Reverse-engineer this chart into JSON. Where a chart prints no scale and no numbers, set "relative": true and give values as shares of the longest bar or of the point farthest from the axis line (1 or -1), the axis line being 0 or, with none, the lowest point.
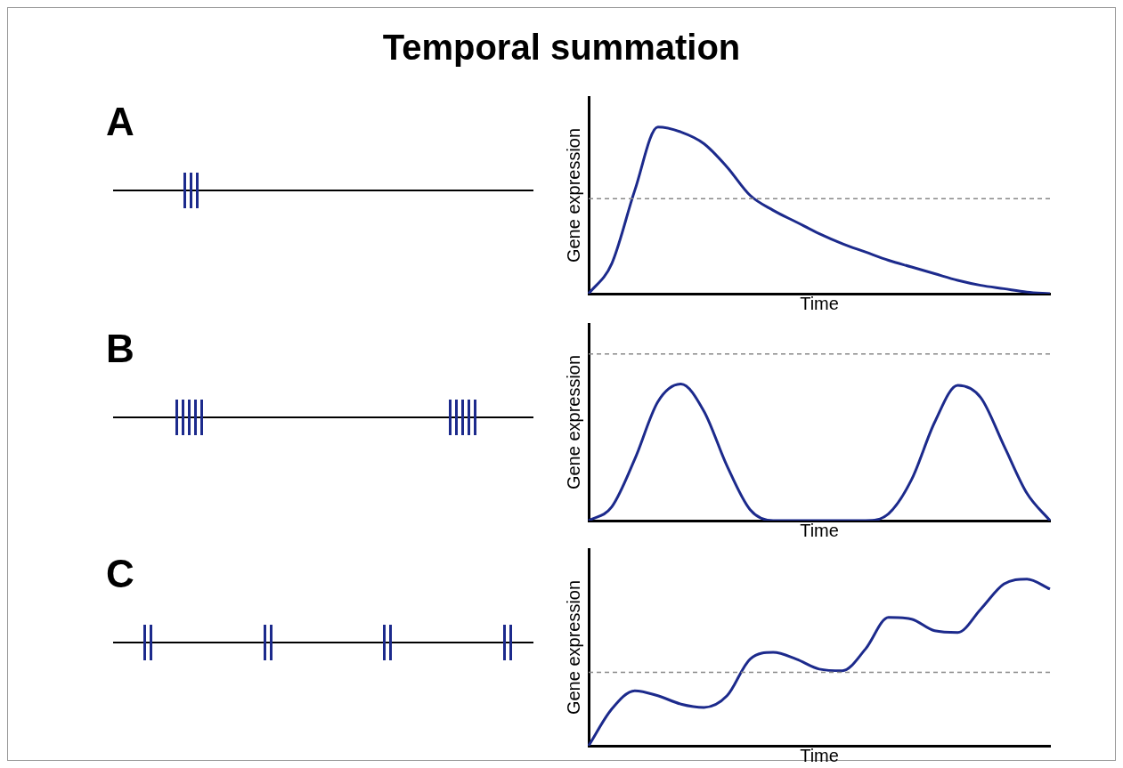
{
  "chart_data": [
    {
      "type": "line",
      "title": "Temporal summation",
      "annotations": [
        "A"
      ],
      "xlabel": "Time",
      "ylabel": "Gene expression",
      "relative": true,
      "tick_labels": false,
      "grid": false,
      "legend": false,
      "marker": "none",
      "categories": [
        null,
        null,
        null,
        null,
        null,
        null,
        null,
        null,
        null,
        null,
        null,
        null,
        null,
        null,
        null,
        null,
        null,
        null,
        null,
        null,
        null
      ],
      "series": [
        {
          "color": "#1c2a8c",
          "values": [
            0,
            0.18,
            0.62,
            1,
            0.97,
            0.9,
            0.76,
            0.59,
            0.5,
            0.43,
            0.36,
            0.3,
            0.25,
            0.2,
            0.16,
            0.12,
            0.08,
            0.05,
            0.03,
            0.01,
            0
          ]
        }
      ],
      "ref_lines": [
        {
          "axis": "y",
          "value": 0.57,
          "color": "#888888",
          "line_style": "dashed"
        }
      ]
    },
    {
      "type": "line",
      "annotations": [
        "B"
      ],
      "xlabel": "Time",
      "ylabel": "Gene expression",
      "relative": true,
      "tick_labels": false,
      "grid": false,
      "legend": false,
      "marker": "none",
      "categories": [
        null,
        null,
        null,
        null,
        null,
        null,
        null,
        null,
        null,
        null,
        null,
        null,
        null,
        null,
        null,
        null,
        null,
        null,
        null,
        null,
        null
      ],
      "series": [
        {
          "color": "#1c2a8c",
          "values": [
            0,
            0.1,
            0.45,
            0.87,
            1,
            0.8,
            0.4,
            0.08,
            0,
            0,
            0,
            0,
            0,
            0.05,
            0.3,
            0.72,
            0.99,
            0.9,
            0.55,
            0.2,
            0
          ]
        }
      ],
      "ref_lines": [
        {
          "axis": "y",
          "value": 1.22,
          "color": "#888888",
          "line_style": "dashed"
        }
      ]
    },
    {
      "type": "line",
      "annotations": [
        "C"
      ],
      "xlabel": "Time",
      "ylabel": "Gene expression",
      "relative": true,
      "tick_labels": false,
      "grid": false,
      "legend": false,
      "marker": "none",
      "categories": [
        null,
        null,
        null,
        null,
        null,
        null,
        null,
        null,
        null,
        null,
        null,
        null,
        null,
        null,
        null,
        null,
        null,
        null,
        null,
        null,
        null
      ],
      "series": [
        {
          "color": "#1c2a8c",
          "values": [
            0,
            0.22,
            0.33,
            0.3,
            0.25,
            0.23,
            0.3,
            0.52,
            0.56,
            0.52,
            0.46,
            0.45,
            0.58,
            0.77,
            0.76,
            0.69,
            0.68,
            0.82,
            0.97,
            1,
            0.94
          ]
        }
      ],
      "ref_lines": [
        {
          "axis": "y",
          "value": 0.44,
          "color": "#888888",
          "line_style": "dashed"
        }
      ]
    }
  ]
}
